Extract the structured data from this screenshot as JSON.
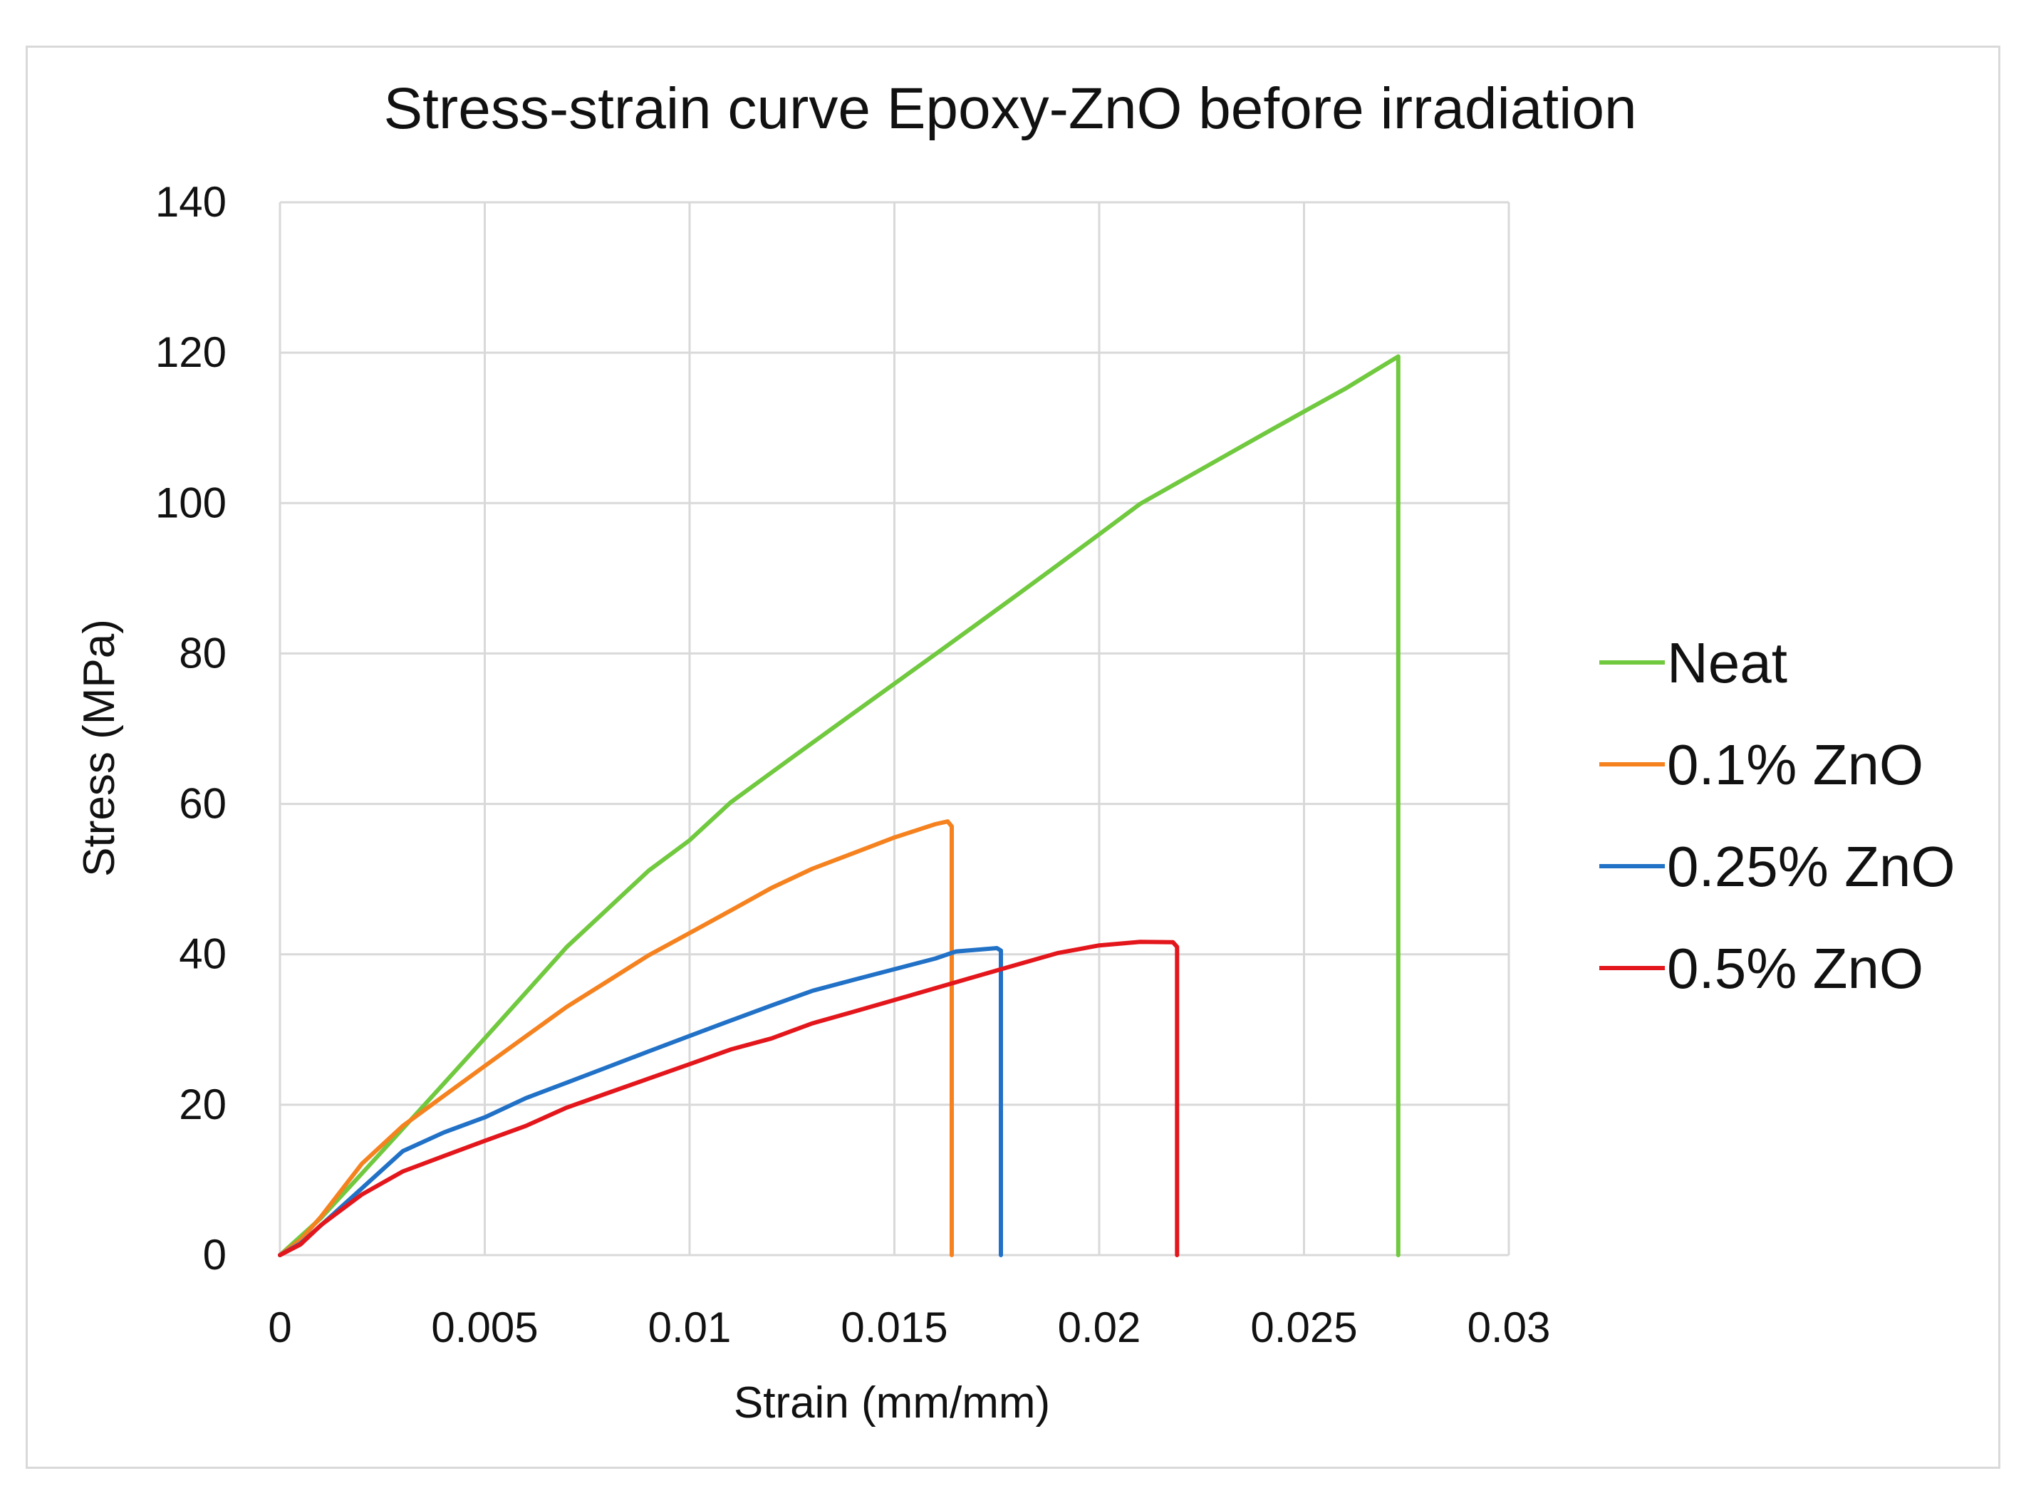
{
  "chart_data": {
    "type": "line",
    "title": "Stress-strain curve Epoxy-ZnO before irradiation",
    "xlabel": "Strain (mm/mm)",
    "ylabel": "Stress (MPa)",
    "xlim": [
      0,
      0.03
    ],
    "ylim": [
      0,
      140
    ],
    "grid": true,
    "legend_position": "right",
    "x_ticks": [
      0,
      0.005,
      0.01,
      0.015,
      0.02,
      0.025,
      0.03
    ],
    "x_tick_labels": [
      "0",
      "0.005",
      "0.01",
      "0.015",
      "0.02",
      "0.025",
      "0.03"
    ],
    "y_ticks": [
      0,
      20,
      40,
      60,
      80,
      100,
      120,
      140
    ],
    "y_tick_labels": [
      "0",
      "20",
      "40",
      "60",
      "80",
      "100",
      "120",
      "140"
    ],
    "series": [
      {
        "name": "Neat",
        "color": "#70c93e",
        "x": [
          0,
          0.001,
          0.002,
          0.003,
          0.004,
          0.005,
          0.006,
          0.007,
          0.008,
          0.009,
          0.01,
          0.011,
          0.012,
          0.013,
          0.014,
          0.015,
          0.016,
          0.017,
          0.018,
          0.019,
          0.02,
          0.021,
          0.022,
          0.023,
          0.024,
          0.025,
          0.026,
          0.0272,
          0.0273,
          0.0273
        ],
        "y": [
          0,
          5,
          11,
          17,
          23,
          29,
          35,
          41,
          46,
          51,
          55,
          60,
          64,
          68,
          72,
          76,
          80,
          84,
          88,
          92,
          96,
          100,
          103,
          106,
          109,
          112,
          115,
          119,
          119.5,
          0
        ]
      },
      {
        "name": "0.1% ZnO",
        "color": "#f5821f",
        "x": [
          0,
          0.0005,
          0.001,
          0.002,
          0.003,
          0.004,
          0.005,
          0.006,
          0.007,
          0.008,
          0.009,
          0.01,
          0.011,
          0.012,
          0.013,
          0.014,
          0.015,
          0.016,
          0.0163,
          0.0164,
          0.0164
        ],
        "y": [
          0,
          2,
          5,
          12,
          17,
          21,
          25,
          29,
          33,
          36.5,
          40,
          43,
          46,
          49,
          51.5,
          53.5,
          55.5,
          57.2,
          57.5,
          57,
          0
        ]
      },
      {
        "name": "0.25% ZnO",
        "color": "#2171c7",
        "x": [
          0,
          0.0005,
          0.001,
          0.002,
          0.003,
          0.004,
          0.005,
          0.006,
          0.007,
          0.008,
          0.009,
          0.01,
          0.011,
          0.012,
          0.013,
          0.014,
          0.015,
          0.016,
          0.0165,
          0.0175,
          0.0176,
          0.0176
        ],
        "y": [
          0,
          1.5,
          4,
          9,
          14,
          16.5,
          18.5,
          21,
          23,
          25,
          27,
          29,
          31,
          33,
          35,
          36.5,
          38,
          39.5,
          40.5,
          41,
          40.5,
          0
        ]
      },
      {
        "name": "0.5% ZnO",
        "color": "#e3161c",
        "x": [
          0,
          0.0005,
          0.001,
          0.002,
          0.003,
          0.004,
          0.005,
          0.006,
          0.007,
          0.008,
          0.009,
          0.01,
          0.011,
          0.012,
          0.013,
          0.014,
          0.015,
          0.016,
          0.017,
          0.018,
          0.019,
          0.02,
          0.021,
          0.0218,
          0.0219,
          0.0219
        ],
        "y": [
          0,
          1.5,
          4,
          8,
          11,
          13,
          15,
          17,
          19.5,
          21.5,
          23.5,
          25.5,
          27.5,
          29,
          31,
          32.5,
          34,
          35.5,
          37,
          38.5,
          40,
          41,
          41.5,
          41.5,
          41,
          0
        ]
      }
    ]
  }
}
